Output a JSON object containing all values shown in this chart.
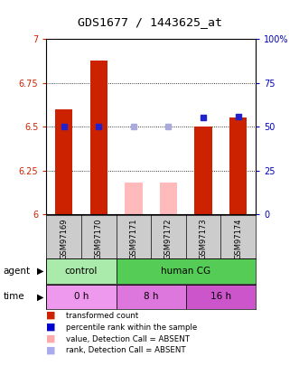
{
  "title": "GDS1677 / 1443625_at",
  "samples": [
    "GSM97169",
    "GSM97170",
    "GSM97171",
    "GSM97172",
    "GSM97173",
    "GSM97174"
  ],
  "red_bar_values": [
    6.6,
    6.88,
    null,
    null,
    6.5,
    6.55
  ],
  "red_bar_base": 6.0,
  "pink_bar_values": [
    null,
    null,
    6.18,
    6.18,
    null,
    null
  ],
  "pink_bar_base": 6.0,
  "blue_square_left_vals": [
    6.6,
    6.62,
    null,
    null,
    6.54,
    6.56
  ],
  "blue_square_right_vals": [
    50,
    50,
    null,
    null,
    55,
    56
  ],
  "lavender_square_left_vals": [
    null,
    null,
    6.48,
    6.5,
    null,
    null
  ],
  "lavender_square_right_vals": [
    null,
    null,
    50,
    50,
    null,
    null
  ],
  "ylim_left": [
    6.0,
    7.0
  ],
  "ylim_right": [
    0,
    100
  ],
  "yticks_left": [
    6.0,
    6.25,
    6.5,
    6.75,
    7.0
  ],
  "ytick_labels_left": [
    "6",
    "6.25",
    "6.5",
    "6.75",
    "7"
  ],
  "yticks_right": [
    0,
    25,
    50,
    75,
    100
  ],
  "ytick_labels_right": [
    "0",
    "25",
    "50",
    "75",
    "100%"
  ],
  "legend_items": [
    {
      "label": "transformed count",
      "color": "#cc2200"
    },
    {
      "label": "percentile rank within the sample",
      "color": "#0000cc"
    },
    {
      "label": "value, Detection Call = ABSENT",
      "color": "#ffaaaa"
    },
    {
      "label": "rank, Detection Call = ABSENT",
      "color": "#aaaaee"
    }
  ],
  "bar_width": 0.5,
  "red_color": "#cc2200",
  "pink_color": "#ffbbbb",
  "blue_color": "#2222cc",
  "lavender_color": "#aaaadd",
  "bg_color": "#ffffff",
  "axis_color_left": "#cc2200",
  "axis_color_right": "#0000bb",
  "agent_color_control": "#aaeaaa",
  "agent_color_humancg": "#55cc55",
  "time_color_0h": "#ee99ee",
  "time_color_8h": "#dd77dd",
  "time_color_16h": "#cc55cc"
}
